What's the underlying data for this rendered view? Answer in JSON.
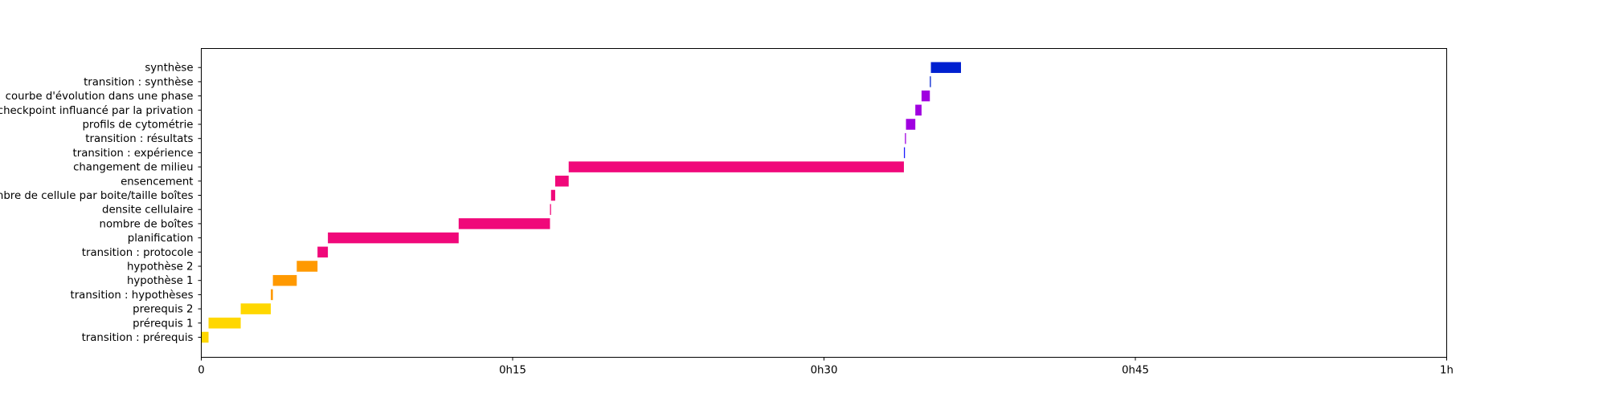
{
  "chart_data": {
    "type": "bar",
    "title": "",
    "xlabel": "",
    "ylabel": "",
    "xlim": [
      0,
      60
    ],
    "x_unit": "minutes",
    "x_ticks": [
      {
        "value": 0,
        "label": "0"
      },
      {
        "value": 15,
        "label": "0h15"
      },
      {
        "value": 30,
        "label": "0h30"
      },
      {
        "value": 45,
        "label": "0h45"
      },
      {
        "value": 60,
        "label": "1h"
      }
    ],
    "grid": false,
    "legend": "none",
    "tasks": [
      {
        "label": "transition : prérequis",
        "start": 0.0,
        "end": 0.35,
        "color": "#ffd700"
      },
      {
        "label": "prérequis 1",
        "start": 0.35,
        "end": 1.9,
        "color": "#ffd700"
      },
      {
        "label": "prerequis 2",
        "start": 1.9,
        "end": 3.35,
        "color": "#ffd700"
      },
      {
        "label": "transition : hypothèses",
        "start": 3.35,
        "end": 3.45,
        "color": "#ff9900"
      },
      {
        "label": "hypothèse 1",
        "start": 3.45,
        "end": 4.6,
        "color": "#ff9900"
      },
      {
        "label": "hypothèse 2",
        "start": 4.6,
        "end": 5.6,
        "color": "#ff9900"
      },
      {
        "label": "transition : protocole",
        "start": 5.6,
        "end": 6.1,
        "color": "#f0087a"
      },
      {
        "label": "planification",
        "start": 6.1,
        "end": 12.4,
        "color": "#f0087a"
      },
      {
        "label": "nombre de boîtes",
        "start": 12.4,
        "end": 16.8,
        "color": "#f0087a"
      },
      {
        "label": "densite cellulaire",
        "start": 16.8,
        "end": 16.85,
        "color": "#f0087a"
      },
      {
        "label": "nombre de cellule par boite/taille boîtes",
        "start": 16.85,
        "end": 17.05,
        "color": "#f0087a"
      },
      {
        "label": "ensencement",
        "start": 17.05,
        "end": 17.7,
        "color": "#f0087a"
      },
      {
        "label": "changement de milieu",
        "start": 17.7,
        "end": 33.85,
        "color": "#f0087a"
      },
      {
        "label": "transition : expérience",
        "start": 33.85,
        "end": 33.9,
        "color": "#1a1aff"
      },
      {
        "label": "transition : résultats",
        "start": 33.9,
        "end": 33.95,
        "color": "#a000e0"
      },
      {
        "label": "profils de cytométrie",
        "start": 33.95,
        "end": 34.4,
        "color": "#a000e0"
      },
      {
        "label": "checkpoint influancé par la privation",
        "start": 34.4,
        "end": 34.7,
        "color": "#a000e0"
      },
      {
        "label": "courbe d'évolution dans une phase",
        "start": 34.7,
        "end": 35.1,
        "color": "#a000e0"
      },
      {
        "label": "transition : synthèse",
        "start": 35.1,
        "end": 35.15,
        "color": "#0020d0"
      },
      {
        "label": "synthèse",
        "start": 35.15,
        "end": 36.6,
        "color": "#0020d0"
      }
    ]
  }
}
